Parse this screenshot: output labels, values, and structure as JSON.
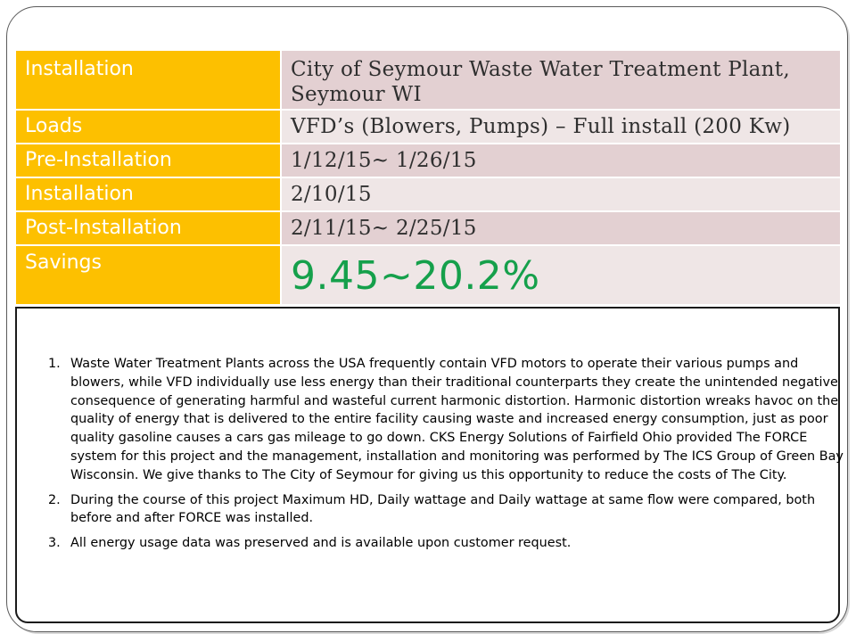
{
  "table": {
    "rows": [
      {
        "label": "Installation",
        "value": "City of Seymour Waste Water Treatment Plant, Seymour WI"
      },
      {
        "label": "Loads",
        "value": "VFD’s (Blowers, Pumps) – Full install (200 Kw)"
      },
      {
        "label": "Pre-Installation",
        "value": "1/12/15~ 1/26/15"
      },
      {
        "label": "Installation",
        "value": "2/10/15"
      },
      {
        "label": "Post-Installation",
        "value": "2/11/15~ 2/25/15"
      },
      {
        "label": "Savings",
        "value": "9.45~20.2%"
      }
    ]
  },
  "notes": [
    "Waste Water Treatment Plants across the USA frequently contain VFD motors to operate their various pumps and blowers, while VFD individually use less energy than their traditional counterparts they create the unintended negative consequence of generating harmful and wasteful current harmonic distortion. Harmonic distortion wreaks havoc on the quality of energy that is delivered to the entire facility causing waste and increased energy consumption, just as poor quality gasoline causes a cars gas mileage to go down. CKS Energy Solutions of Fairfield Ohio provided The FORCE system for this project and the management, installation and monitoring was performed by The ICS Group of Green Bay Wisconsin. We give thanks to The City of Seymour for giving us this opportunity to reduce the costs of The City.",
    "During the course of this project Maximum HD, Daily wattage  and Daily wattage at same flow were compared, both before and after FORCE was installed.",
    "All energy usage  data was preserved and is available upon customer request."
  ],
  "colors": {
    "label_background": "#fdc000",
    "value_background_dark": "#e3d0d2",
    "value_background_light": "#efe6e6",
    "savings_text": "#15a04b"
  }
}
